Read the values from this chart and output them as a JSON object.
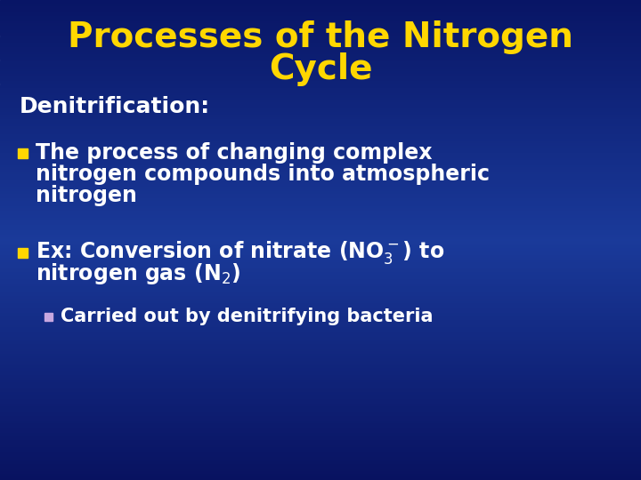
{
  "title_line1": "Processes of the Nitrogen",
  "title_line2": "Cycle",
  "title_color": "#FFD700",
  "title_fontsize": 28,
  "title_fontweight": "bold",
  "bg_color_top": "#0a1a6e",
  "bg_color_mid": "#1a3a9a",
  "bg_color_bottom": "#0a0f5e",
  "section_label": "Denitrification:",
  "section_color": "#ffffff",
  "section_fontsize": 18,
  "section_fontweight": "bold",
  "bullet_color": "#FFD700",
  "sub_bullet_color": "#c8a8e0",
  "text_color": "#ffffff",
  "bullet_fontsize": 17,
  "sub_bullet_fontsize": 15,
  "bullet1_line1": "The process of changing complex",
  "bullet1_line2": "nitrogen compounds into atmospheric",
  "bullet1_line3": "nitrogen",
  "bullet2_line1": "Ex: Conversion of nitrate (NO$_3^-$) to",
  "bullet2_line2": "nitrogen gas (N$_2$)",
  "sub_bullet_line": "Carried out by denitrifying bacteria"
}
